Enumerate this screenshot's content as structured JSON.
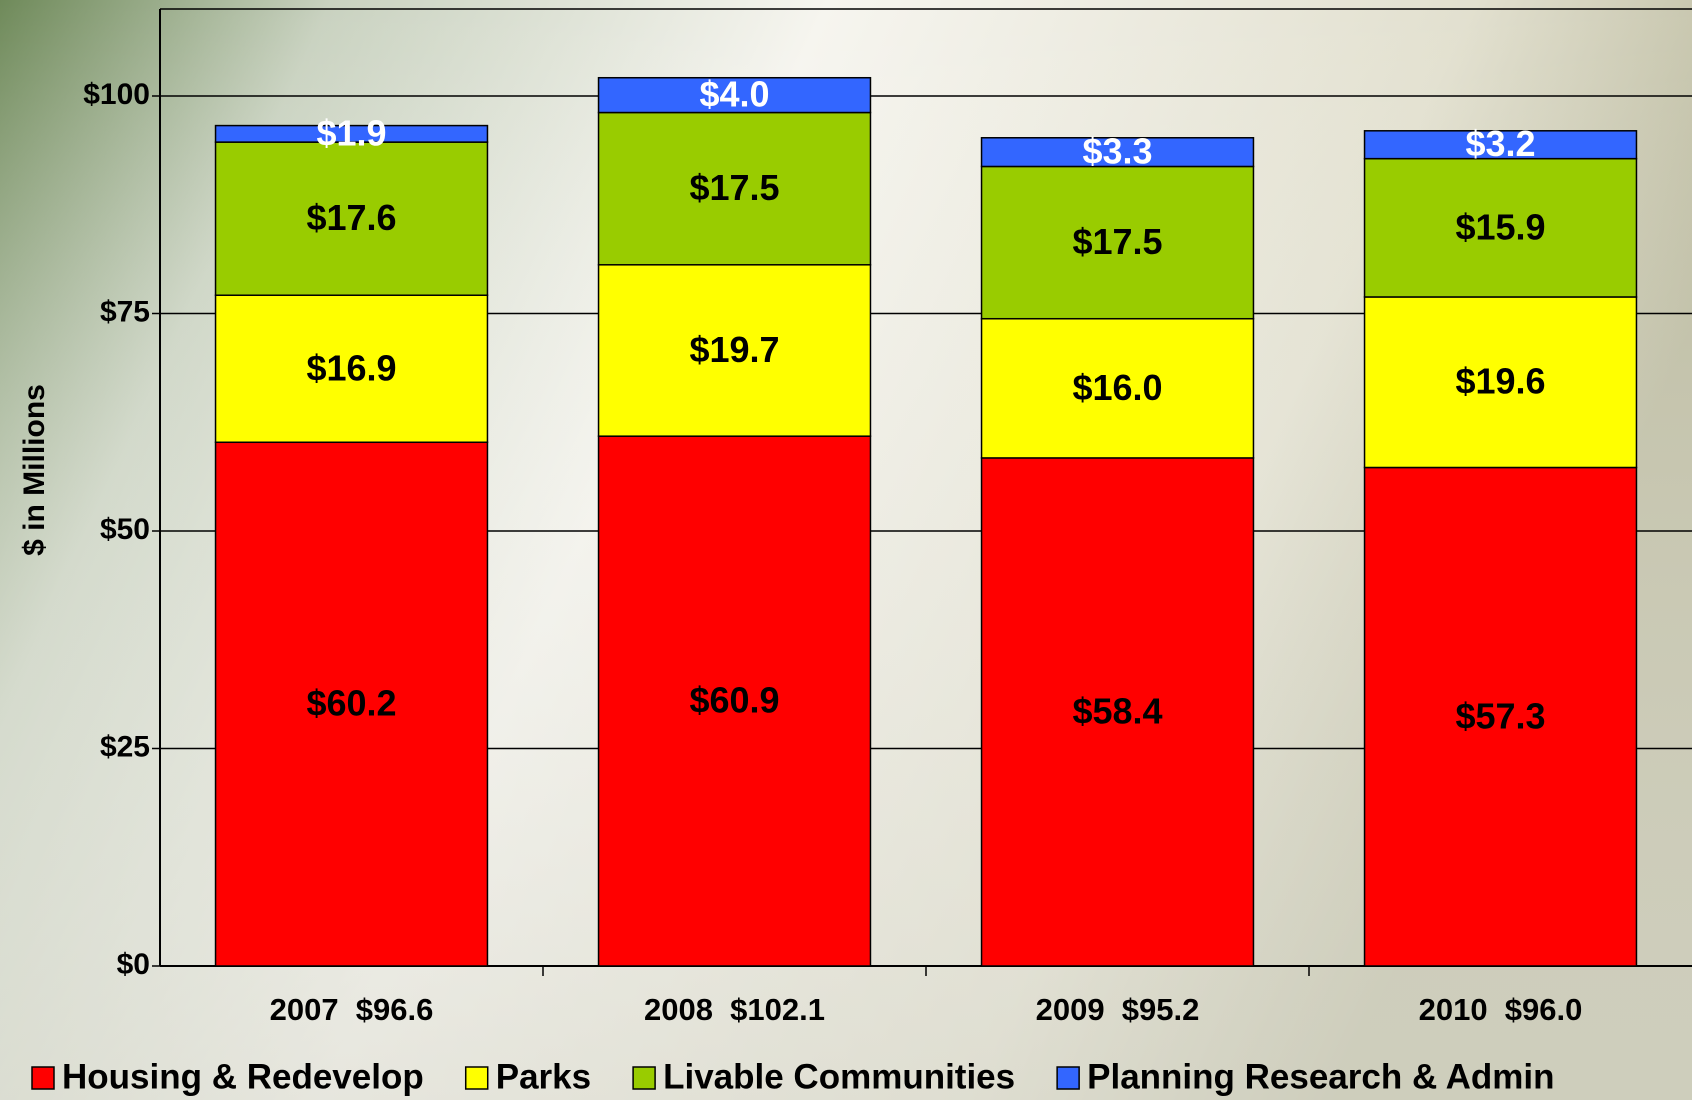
{
  "chart_data": {
    "type": "stacked-bar",
    "y_label": "$ in Millions",
    "categories": [
      "2007  $96.6",
      "2008  $102.1",
      "2009  $95.2",
      "2010  $96.0"
    ],
    "series": [
      {
        "name": "Housing & Redevelop",
        "color": "#ff0000",
        "values": [
          60.2,
          60.9,
          58.4,
          57.3
        ],
        "value_labels": [
          "$60.2",
          "$60.9",
          "$58.4",
          "$57.3"
        ]
      },
      {
        "name": "Parks",
        "color": "#ffff00",
        "values": [
          16.9,
          19.7,
          16.0,
          19.6
        ],
        "value_labels": [
          "$16.9",
          "$19.7",
          "$16.0",
          "$19.6"
        ]
      },
      {
        "name": "Livable Communities",
        "color": "#99cc00",
        "values": [
          17.6,
          17.5,
          17.5,
          15.9
        ],
        "value_labels": [
          "$17.6",
          "$17.5",
          "$17.5",
          "$15.9"
        ]
      },
      {
        "name": "Planning Research & Admin",
        "color": "#3366ff",
        "values": [
          1.9,
          4.0,
          3.3,
          3.2
        ],
        "value_labels": [
          "$1.9",
          "$4.0",
          "$3.3",
          "$3.2"
        ]
      }
    ],
    "ylim": [
      0,
      110
    ],
    "yticks": [
      {
        "value": 0,
        "label": "$0"
      },
      {
        "value": 25,
        "label": "$25"
      },
      {
        "value": 50,
        "label": "$50"
      },
      {
        "value": 75,
        "label": "$75"
      },
      {
        "value": 100,
        "label": "$100"
      }
    ],
    "grid": true
  }
}
